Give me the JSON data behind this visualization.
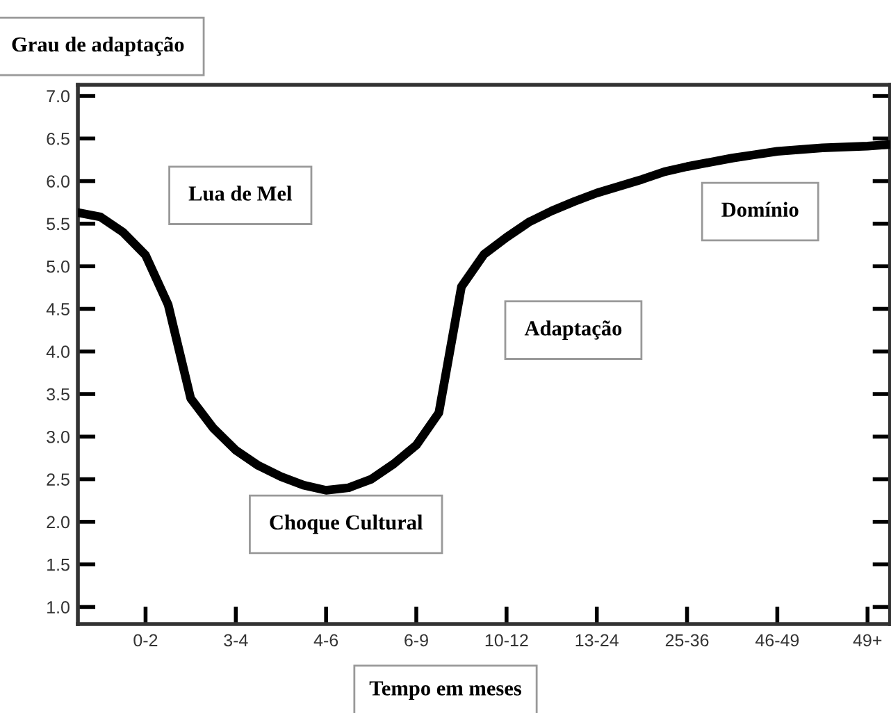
{
  "chart_data": {
    "type": "line",
    "ylabel": "Grau de adaptação",
    "xlabel": "Tempo em meses",
    "categories": [
      null,
      null,
      null,
      "0-2",
      null,
      null,
      null,
      "3-4",
      null,
      null,
      null,
      "4-6",
      null,
      null,
      null,
      "6-9",
      null,
      null,
      null,
      "10-12",
      null,
      null,
      null,
      "13-24",
      null,
      null,
      null,
      "25-36",
      null,
      null,
      null,
      "46-49",
      null,
      null,
      null,
      "49+",
      null
    ],
    "series": [
      {
        "color": "#000000",
        "values": [
          5.63,
          5.58,
          5.4,
          5.13,
          4.55,
          3.45,
          3.1,
          2.84,
          2.66,
          2.53,
          2.43,
          2.37,
          2.4,
          2.5,
          2.68,
          2.9,
          3.28,
          4.76,
          5.14,
          5.34,
          5.52,
          5.65,
          5.76,
          5.86,
          5.94,
          6.02,
          6.11,
          6.17,
          6.22,
          6.27,
          6.31,
          6.35,
          6.37,
          6.39,
          6.4,
          6.41,
          6.43
        ]
      }
    ],
    "ylim": [
      0.8,
      7.13
    ],
    "yticks": [
      {
        "value": 1,
        "label": "1.0"
      },
      {
        "value": 1.5,
        "label": "1.5"
      },
      {
        "value": 2,
        "label": "2.0"
      },
      {
        "value": 2.5,
        "label": "2.5"
      },
      {
        "value": 3,
        "label": "3.0"
      },
      {
        "value": 3.5,
        "label": "3.5"
      },
      {
        "value": 4,
        "label": "4.0"
      },
      {
        "value": 4.5,
        "label": "4.5"
      },
      {
        "value": 5,
        "label": "5.0"
      },
      {
        "value": 5.5,
        "label": "5.5"
      },
      {
        "value": 6,
        "label": "6.0"
      },
      {
        "value": 6.5,
        "label": "6.5"
      },
      {
        "value": 7,
        "label": "7.0"
      }
    ],
    "annotations": [
      "Lua de Mel",
      "Choque Cultural",
      "Adaptação",
      "Domínio"
    ],
    "grid": false,
    "legend": false,
    "marker": "none",
    "line_style": "solid"
  }
}
